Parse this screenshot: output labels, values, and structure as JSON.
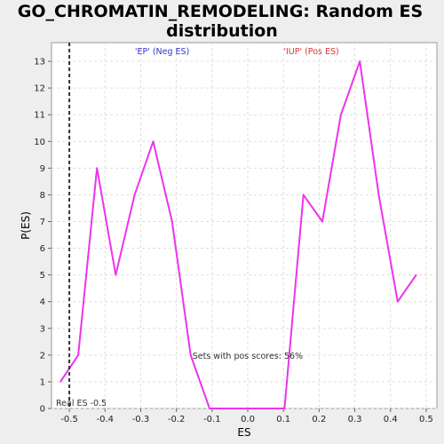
{
  "chart_data": {
    "type": "line",
    "title": "GO_CHROMATIN_REMODELING: Random ES distribution",
    "title_lines": [
      "GO_CHROMATIN_REMODELING: Random ES",
      "distribution"
    ],
    "xlabel": "ES",
    "ylabel": "P(ES)",
    "xlim": [
      -0.55,
      0.53
    ],
    "ylim": [
      0,
      13.7
    ],
    "x_ticks": [
      -0.5,
      -0.4,
      -0.3,
      -0.2,
      -0.1,
      0.0,
      0.1,
      0.2,
      0.3,
      0.4,
      0.5
    ],
    "x_tick_labels": [
      "-0.5",
      "-0.4",
      "-0.3",
      "-0.2",
      "-0.1",
      "0.0",
      "0.1",
      "0.2",
      "0.3",
      "0.4",
      "0.5"
    ],
    "y_ticks": [
      0,
      1,
      2,
      3,
      4,
      5,
      6,
      7,
      8,
      9,
      10,
      11,
      12,
      13
    ],
    "grid": true,
    "series": [
      {
        "color": "#ee33ee",
        "x": [
          -0.525,
          -0.475,
          -0.4225,
          -0.37,
          -0.317,
          -0.265,
          -0.212,
          -0.16,
          -0.107,
          -0.055,
          -0.002,
          0.051,
          0.103,
          0.156,
          0.209,
          0.261,
          0.314,
          0.367,
          0.42,
          0.472
        ],
        "y": [
          1,
          2,
          9,
          5,
          8,
          10,
          7,
          2,
          0,
          0,
          0,
          0,
          0,
          8,
          7,
          11,
          13,
          8,
          4,
          5
        ]
      }
    ],
    "real_es": {
      "value": -0.5,
      "label": "Real ES -0.5",
      "line_color": "#333333"
    },
    "annotations": {
      "neg_label": "'EP' (Neg ES)",
      "neg_color": "#3333cc",
      "pos_label": "'IUP' (Pos ES)",
      "pos_color": "#dd3333",
      "pos_scores_text": "Sets with pos scores: 56%"
    }
  }
}
